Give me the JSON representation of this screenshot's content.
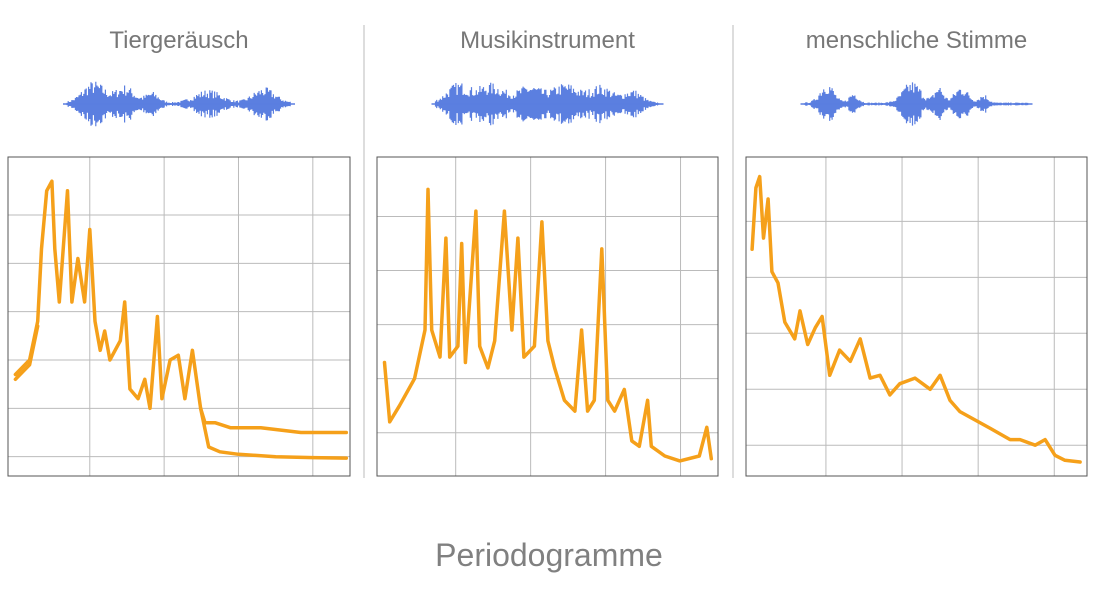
{
  "chart_data": [
    {
      "type": "line",
      "title": "Tiergeräusch",
      "xlim": [
        -0.1,
        4.5
      ],
      "ylim": [
        0.6,
        7.2
      ],
      "xticks": [
        1,
        2,
        3,
        4
      ],
      "yticks": [
        1,
        2,
        3,
        4,
        5,
        6
      ],
      "grid": true,
      "series": [
        {
          "color": "#f5a01a",
          "x": [
            0,
            0.19,
            0.3,
            0.35,
            0.42,
            0.49,
            0.53,
            0.59,
            0.7,
            0.76,
            0.84,
            0.93,
            1.0,
            1.07,
            1.14,
            1.2,
            1.27,
            1.41,
            1.47,
            1.54,
            1.65,
            1.74,
            1.81,
            1.91,
            1.97,
            2.08,
            2.19,
            2.28,
            2.38,
            2.49,
            2.55,
            2.69,
            2.89,
            3.3,
            3.84,
            4.45
          ],
          "values": [
            2.7,
            3.0,
            3.8,
            5.3,
            6.5,
            6.7,
            5.3,
            4.2,
            6.5,
            4.2,
            5.1,
            4.2,
            5.7,
            3.8,
            3.2,
            3.6,
            3.0,
            3.4,
            4.2,
            2.4,
            2.2,
            2.6,
            2.0,
            3.9,
            2.2,
            3.0,
            3.1,
            2.2,
            3.2,
            2.0,
            1.7,
            1.7,
            1.6,
            1.6,
            1.5,
            1.5
          ]
        },
        {
          "color": "#f5a01a",
          "x": [
            0,
            0.19,
            0.3,
            1.0,
            2.49,
            2.6,
            2.75,
            3.0,
            3.5,
            4.0,
            4.45
          ],
          "values": [
            2.6,
            2.9,
            3.7,
            null,
            2.0,
            1.2,
            1.1,
            1.05,
            1.0,
            0.98,
            0.97
          ]
        }
      ]
    },
    {
      "type": "line",
      "title": "Musikinstrument",
      "xlim": [
        -0.05,
        4.5
      ],
      "ylim": [
        0.2,
        6.1
      ],
      "xticks": [
        1,
        2,
        3,
        4
      ],
      "yticks": [
        1,
        2,
        3,
        4,
        5
      ],
      "grid": true,
      "series": [
        {
          "color": "#f5a01a",
          "x": [
            0.05,
            0.12,
            0.25,
            0.45,
            0.59,
            0.63,
            0.68,
            0.79,
            0.87,
            0.92,
            1.03,
            1.08,
            1.13,
            1.27,
            1.32,
            1.43,
            1.52,
            1.65,
            1.75,
            1.83,
            1.91,
            2.05,
            2.15,
            2.23,
            2.32,
            2.45,
            2.59,
            2.68,
            2.76,
            2.85,
            2.95,
            3.03,
            3.12,
            3.25,
            3.35,
            3.45,
            3.56,
            3.61,
            3.79,
            3.99,
            4.25,
            4.35,
            4.41
          ],
          "values": [
            2.3,
            1.2,
            1.5,
            2.0,
            2.9,
            5.5,
            2.9,
            2.4,
            4.6,
            2.4,
            2.6,
            4.5,
            2.3,
            5.1,
            2.6,
            2.2,
            2.7,
            5.1,
            2.9,
            4.6,
            2.4,
            2.6,
            4.9,
            2.7,
            2.2,
            1.6,
            1.4,
            2.9,
            1.4,
            1.6,
            4.4,
            1.6,
            1.4,
            1.8,
            0.85,
            0.75,
            1.6,
            0.75,
            0.57,
            0.48,
            0.57,
            1.1,
            0.52
          ]
        }
      ]
    },
    {
      "type": "line",
      "title": "menschliche Stimme",
      "xlim": [
        -0.05,
        4.43
      ],
      "ylim": [
        0.45,
        6.15
      ],
      "xticks": [
        1,
        2,
        3,
        4
      ],
      "yticks": [
        1,
        2,
        3,
        4,
        5
      ],
      "grid": true,
      "series": [
        {
          "color": "#f5a01a",
          "x": [
            0.03,
            0.08,
            0.13,
            0.18,
            0.24,
            0.29,
            0.37,
            0.46,
            0.59,
            0.66,
            0.76,
            0.86,
            0.95,
            1.05,
            1.18,
            1.32,
            1.45,
            1.58,
            1.71,
            1.84,
            1.97,
            2.17,
            2.37,
            2.5,
            2.63,
            2.76,
            2.96,
            3.16,
            3.29,
            3.42,
            3.55,
            3.75,
            3.88,
            4.01,
            4.14,
            4.34
          ],
          "values": [
            4.5,
            5.6,
            5.8,
            4.7,
            5.4,
            4.1,
            3.9,
            3.2,
            2.9,
            3.4,
            2.8,
            3.1,
            3.3,
            2.25,
            2.7,
            2.5,
            2.9,
            2.2,
            2.25,
            1.9,
            2.1,
            2.2,
            2.0,
            2.25,
            1.8,
            1.6,
            1.45,
            1.3,
            1.2,
            1.1,
            1.1,
            1.0,
            1.1,
            0.82,
            0.73,
            0.7
          ]
        }
      ]
    }
  ],
  "caption": "Periodogramme"
}
